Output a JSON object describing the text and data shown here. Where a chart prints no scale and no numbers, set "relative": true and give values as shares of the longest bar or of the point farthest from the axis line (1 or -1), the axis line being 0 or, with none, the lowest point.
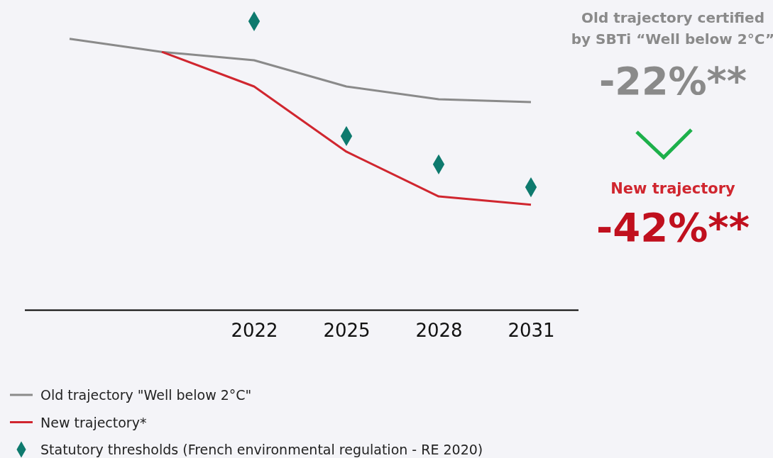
{
  "chart_data": {
    "type": "line",
    "relative": true,
    "categories": [
      null,
      null,
      "2022",
      "2025",
      "2028",
      "2031"
    ],
    "series": [
      {
        "name": "Old trajectory \"Well below 2°C\"",
        "color": "#8a8a8a",
        "values": [
          0.939,
          0.894,
          0.865,
          0.774,
          0.73,
          0.72
        ]
      },
      {
        "name": "New trajectory*",
        "color": "#d0262f",
        "values": [
          null,
          0.894,
          0.774,
          0.548,
          0.393,
          0.364
        ]
      },
      {
        "name": "Statutory thresholds (French environmental regulation - RE 2020)",
        "type": "scatter",
        "marker": "diamond",
        "color": "#0e7a6e",
        "values": [
          null,
          null,
          1,
          0.602,
          0.504,
          0.425
        ]
      }
    ],
    "annotations": [
      "Old trajectory certified by SBTi “Well below 2°C”",
      "-22%**",
      "New trajectory",
      "-42%**"
    ],
    "legend": "bottom"
  }
}
